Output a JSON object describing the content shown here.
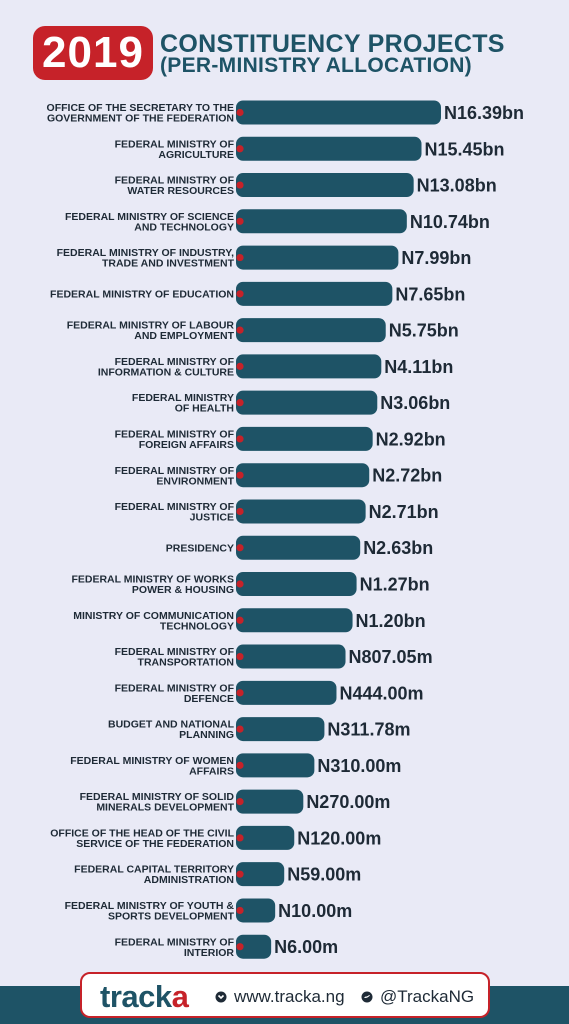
{
  "header": {
    "year": "2019",
    "title_line1": "CONSTITUENCY PROJECTS",
    "title_line2": "(PER-MINISTRY ALLOCATION)"
  },
  "colors": {
    "bar": "#1e5366",
    "accent": "#c62229",
    "background": "#e9eaf6"
  },
  "chart_data": {
    "type": "bar",
    "orientation": "horizontal",
    "unit": "naira",
    "categories": [
      [
        "OFFICE OF THE SECRETARY TO THE",
        "GOVERNMENT OF THE FEDERATION"
      ],
      [
        "FEDERAL MINISTRY OF",
        "AGRICULTURE"
      ],
      [
        "FEDERAL MINISTRY OF",
        "WATER RESOURCES"
      ],
      [
        "FEDERAL MINISTRY OF SCIENCE",
        "AND TECHNOLOGY"
      ],
      [
        "FEDERAL MINISTRY OF INDUSTRY,",
        "TRADE AND INVESTMENT"
      ],
      [
        "FEDERAL MINISTRY OF EDUCATION"
      ],
      [
        "FEDERAL MINISTRY OF LABOUR",
        "AND EMPLOYMENT"
      ],
      [
        "FEDERAL MINISTRY OF",
        "INFORMATION & CULTURE"
      ],
      [
        "FEDERAL MINISTRY",
        "OF HEALTH"
      ],
      [
        "FEDERAL MINISTRY OF",
        "FOREIGN AFFAIRS"
      ],
      [
        "FEDERAL MINISTRY OF",
        "ENVIRONMENT"
      ],
      [
        "FEDERAL MINISTRY OF",
        "JUSTICE"
      ],
      [
        "PRESIDENCY"
      ],
      [
        "FEDERAL MINISTRY OF WORKS",
        "POWER & HOUSING"
      ],
      [
        "MINISTRY OF COMMUNICATION",
        "TECHNOLOGY"
      ],
      [
        "FEDERAL MINISTRY OF",
        "TRANSPORTATION"
      ],
      [
        "FEDERAL MINISTRY OF",
        "DEFENCE"
      ],
      [
        "BUDGET AND NATIONAL",
        "PLANNING"
      ],
      [
        "FEDERAL MINISTRY OF WOMEN",
        "AFFAIRS"
      ],
      [
        "FEDERAL MINISTRY OF SOLID",
        "MINERALS DEVELOPMENT"
      ],
      [
        "OFFICE OF THE HEAD OF THE CIVIL",
        "SERVICE OF THE FEDERATION"
      ],
      [
        "FEDERAL CAPITAL TERRITORY",
        "ADMINISTRATION"
      ],
      [
        "FEDERAL MINISTRY OF YOUTH &",
        "SPORTS DEVELOPMENT"
      ],
      [
        "FEDERAL MINISTRY OF",
        "INTERIOR"
      ]
    ],
    "values": [
      16390000000,
      15450000000,
      13080000000,
      10740000000,
      7990000000,
      7650000000,
      5750000000,
      4110000000,
      3060000000,
      2920000000,
      2720000000,
      2710000000,
      2630000000,
      1270000000,
      1200000000,
      807050000,
      444000000,
      311780000,
      310000000,
      270000000,
      120000000,
      59000000,
      10000000,
      6000000
    ],
    "labels": [
      "N16.39bn",
      "N15.45bn",
      "N13.08bn",
      "N10.74bn",
      "N7.99bn",
      "N7.65bn",
      "N5.75bn",
      "N4.11bn",
      "N3.06bn",
      "N2.92bn",
      "N2.72bn",
      "N2.71bn",
      "N2.63bn",
      "N1.27bn",
      "N1.20bn",
      "N807.05m",
      "N444.00m",
      "N311.78m",
      "N310.00m",
      "N270.00m",
      "N120.00m",
      "N59.00m",
      "N10.00m",
      "N6.00m"
    ],
    "bar_fill_fraction": [
      1.0,
      0.903,
      0.864,
      0.83,
      0.788,
      0.758,
      0.725,
      0.703,
      0.683,
      0.66,
      0.643,
      0.625,
      0.598,
      0.58,
      0.56,
      0.525,
      0.48,
      0.42,
      0.37,
      0.315,
      0.27,
      0.22,
      0.175,
      0.155
    ]
  },
  "footer": {
    "brand_prefix": "track",
    "brand_suffix": "a",
    "website": "www.tracka.ng",
    "twitter": "@TrackaNG",
    "website_icon": "globe-icon",
    "twitter_icon": "twitter-bird-icon"
  }
}
